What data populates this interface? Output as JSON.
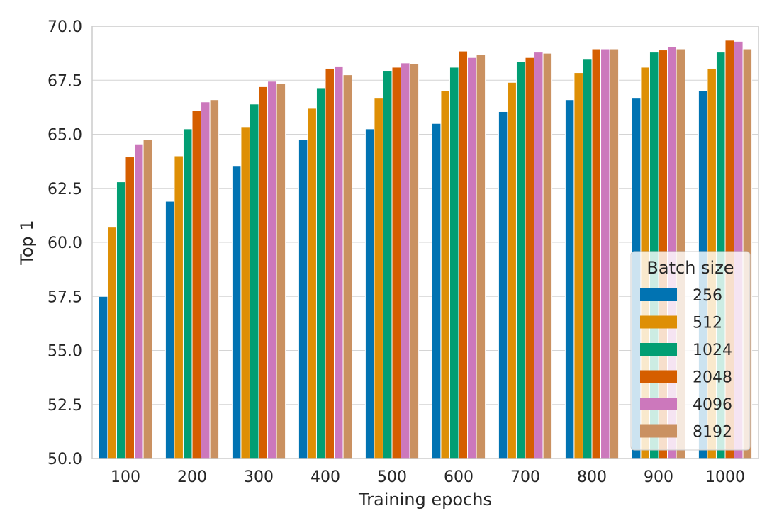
{
  "chart_data": {
    "type": "bar",
    "xlabel": "Training epochs",
    "ylabel": "Top 1",
    "ylim": [
      50.0,
      70.0
    ],
    "yticks": [
      "50.0",
      "52.5",
      "55.0",
      "57.5",
      "60.0",
      "62.5",
      "65.0",
      "67.5",
      "70.0"
    ],
    "grid": "horizontal",
    "categories": [
      "100",
      "200",
      "300",
      "400",
      "500",
      "600",
      "700",
      "800",
      "900",
      "1000"
    ],
    "legend": {
      "title": "Batch size",
      "placement": "bottom-right"
    },
    "series": [
      {
        "name": "256",
        "color": "#0173b2",
        "values": [
          57.5,
          61.9,
          63.55,
          64.75,
          65.25,
          65.5,
          66.05,
          66.6,
          66.7,
          67.0
        ]
      },
      {
        "name": "512",
        "color": "#de8f05",
        "values": [
          60.7,
          64.0,
          65.35,
          66.2,
          66.7,
          67.0,
          67.4,
          67.85,
          68.1,
          68.05
        ]
      },
      {
        "name": "1024",
        "color": "#029e73",
        "values": [
          62.8,
          65.25,
          66.4,
          67.15,
          67.95,
          68.1,
          68.35,
          68.5,
          68.8,
          68.8
        ]
      },
      {
        "name": "2048",
        "color": "#d55e00",
        "values": [
          63.95,
          66.1,
          67.2,
          68.05,
          68.1,
          68.85,
          68.55,
          68.95,
          68.9,
          69.35
        ]
      },
      {
        "name": "4096",
        "color": "#cc78bc",
        "values": [
          64.55,
          66.5,
          67.45,
          68.15,
          68.3,
          68.55,
          68.8,
          68.95,
          69.05,
          69.3
        ]
      },
      {
        "name": "8192",
        "color": "#ca9161",
        "values": [
          64.75,
          66.6,
          67.35,
          67.75,
          68.25,
          68.7,
          68.75,
          68.95,
          68.95,
          68.95
        ]
      }
    ]
  }
}
